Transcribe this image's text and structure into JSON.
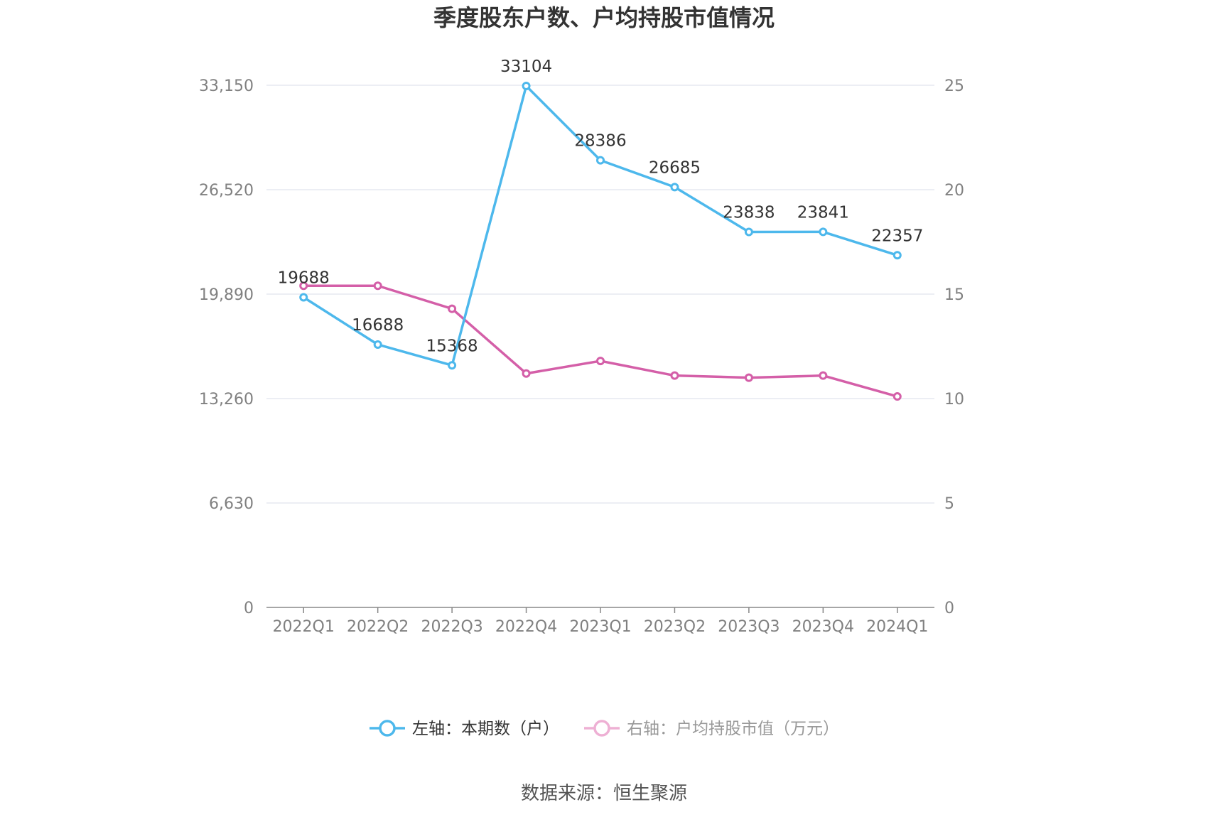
{
  "chart_data": {
    "type": "line",
    "title": "季度股东户数、户均持股市值情况",
    "categories": [
      "2022Q1",
      "2022Q2",
      "2022Q3",
      "2022Q4",
      "2023Q1",
      "2023Q2",
      "2023Q3",
      "2023Q4",
      "2024Q1"
    ],
    "left_axis": {
      "ticks": [
        "0",
        "6,630",
        "13,260",
        "19,890",
        "26,520",
        "33,150"
      ],
      "range": [
        0,
        33150
      ]
    },
    "right_axis": {
      "ticks": [
        "0",
        "5",
        "10",
        "15",
        "20",
        "25"
      ],
      "range": [
        0,
        25
      ]
    },
    "series": [
      {
        "name": "左轴：本期数（户）",
        "axis": "left",
        "color": "#4db8ec",
        "values": [
          19688,
          16688,
          15368,
          33104,
          28386,
          26685,
          23838,
          23841,
          22357
        ],
        "labels": [
          "19688",
          "16688",
          "15368",
          "33104",
          "28386",
          "26685",
          "23838",
          "23841",
          "22357"
        ]
      },
      {
        "name": "右轴：户均持股市值（万元）",
        "axis": "right",
        "color": "#d45fa8",
        "values": [
          15.4,
          15.4,
          14.3,
          11.2,
          11.8,
          11.1,
          11.0,
          11.1,
          10.1
        ]
      }
    ],
    "legend_position": "bottom",
    "grid": true
  },
  "source": "数据来源：恒生聚源"
}
